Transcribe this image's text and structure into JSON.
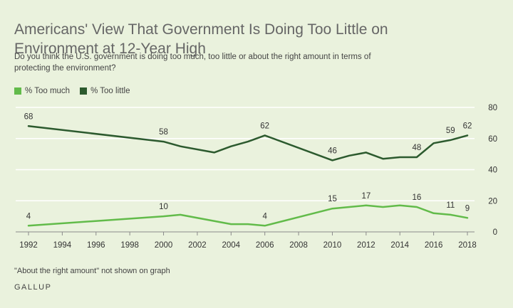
{
  "header": {
    "title": "Americans' View That Government Is Doing Too Little on Environment at 12-Year High",
    "subtitle": "Do you think the U.S. government is doing too much, too little or about the right amount in terms of protecting the environment?"
  },
  "footer": {
    "note": "\"About the right amount\" not shown on graph",
    "source": "GALLUP"
  },
  "chart_data": {
    "type": "line",
    "ylim": [
      0,
      80
    ],
    "xlim": [
      1992,
      2018
    ],
    "yticks": [
      0,
      20,
      40,
      60,
      80
    ],
    "xticks": [
      1992,
      1994,
      1996,
      1998,
      2000,
      2002,
      2004,
      2006,
      2008,
      2010,
      2012,
      2014,
      2016,
      2018
    ],
    "grid": true,
    "legend_position": "top-left",
    "series": [
      {
        "name": "% Too much",
        "color": "#62bb4a",
        "x": [
          1992,
          2000,
          2001,
          2004,
          2005,
          2006,
          2010,
          2011,
          2012,
          2013,
          2014,
          2015,
          2016,
          2017,
          2018
        ],
        "values": [
          4,
          10,
          11,
          5,
          5,
          4,
          15,
          16,
          17,
          16,
          17,
          16,
          12,
          11,
          9
        ],
        "labels": [
          {
            "x": 1992,
            "y": 4,
            "text": "4"
          },
          {
            "x": 2000,
            "y": 10,
            "text": "10"
          },
          {
            "x": 2006,
            "y": 4,
            "text": "4"
          },
          {
            "x": 2010,
            "y": 15,
            "text": "15"
          },
          {
            "x": 2012,
            "y": 17,
            "text": "17"
          },
          {
            "x": 2015,
            "y": 16,
            "text": "16"
          },
          {
            "x": 2017,
            "y": 11,
            "text": "11"
          },
          {
            "x": 2018,
            "y": 9,
            "text": "9"
          }
        ]
      },
      {
        "name": "% Too little",
        "color": "#2c5a2e",
        "x": [
          1992,
          2000,
          2001,
          2003,
          2004,
          2005,
          2006,
          2010,
          2011,
          2012,
          2013,
          2014,
          2015,
          2016,
          2017,
          2018
        ],
        "values": [
          68,
          58,
          55,
          51,
          55,
          58,
          62,
          46,
          49,
          51,
          47,
          48,
          48,
          57,
          59,
          62
        ],
        "labels": [
          {
            "x": 1992,
            "y": 68,
            "text": "68"
          },
          {
            "x": 2000,
            "y": 58,
            "text": "58"
          },
          {
            "x": 2006,
            "y": 62,
            "text": "62"
          },
          {
            "x": 2010,
            "y": 46,
            "text": "46"
          },
          {
            "x": 2015,
            "y": 48,
            "text": "48"
          },
          {
            "x": 2017,
            "y": 59,
            "text": "59"
          },
          {
            "x": 2018,
            "y": 62,
            "text": "62"
          }
        ]
      }
    ]
  }
}
